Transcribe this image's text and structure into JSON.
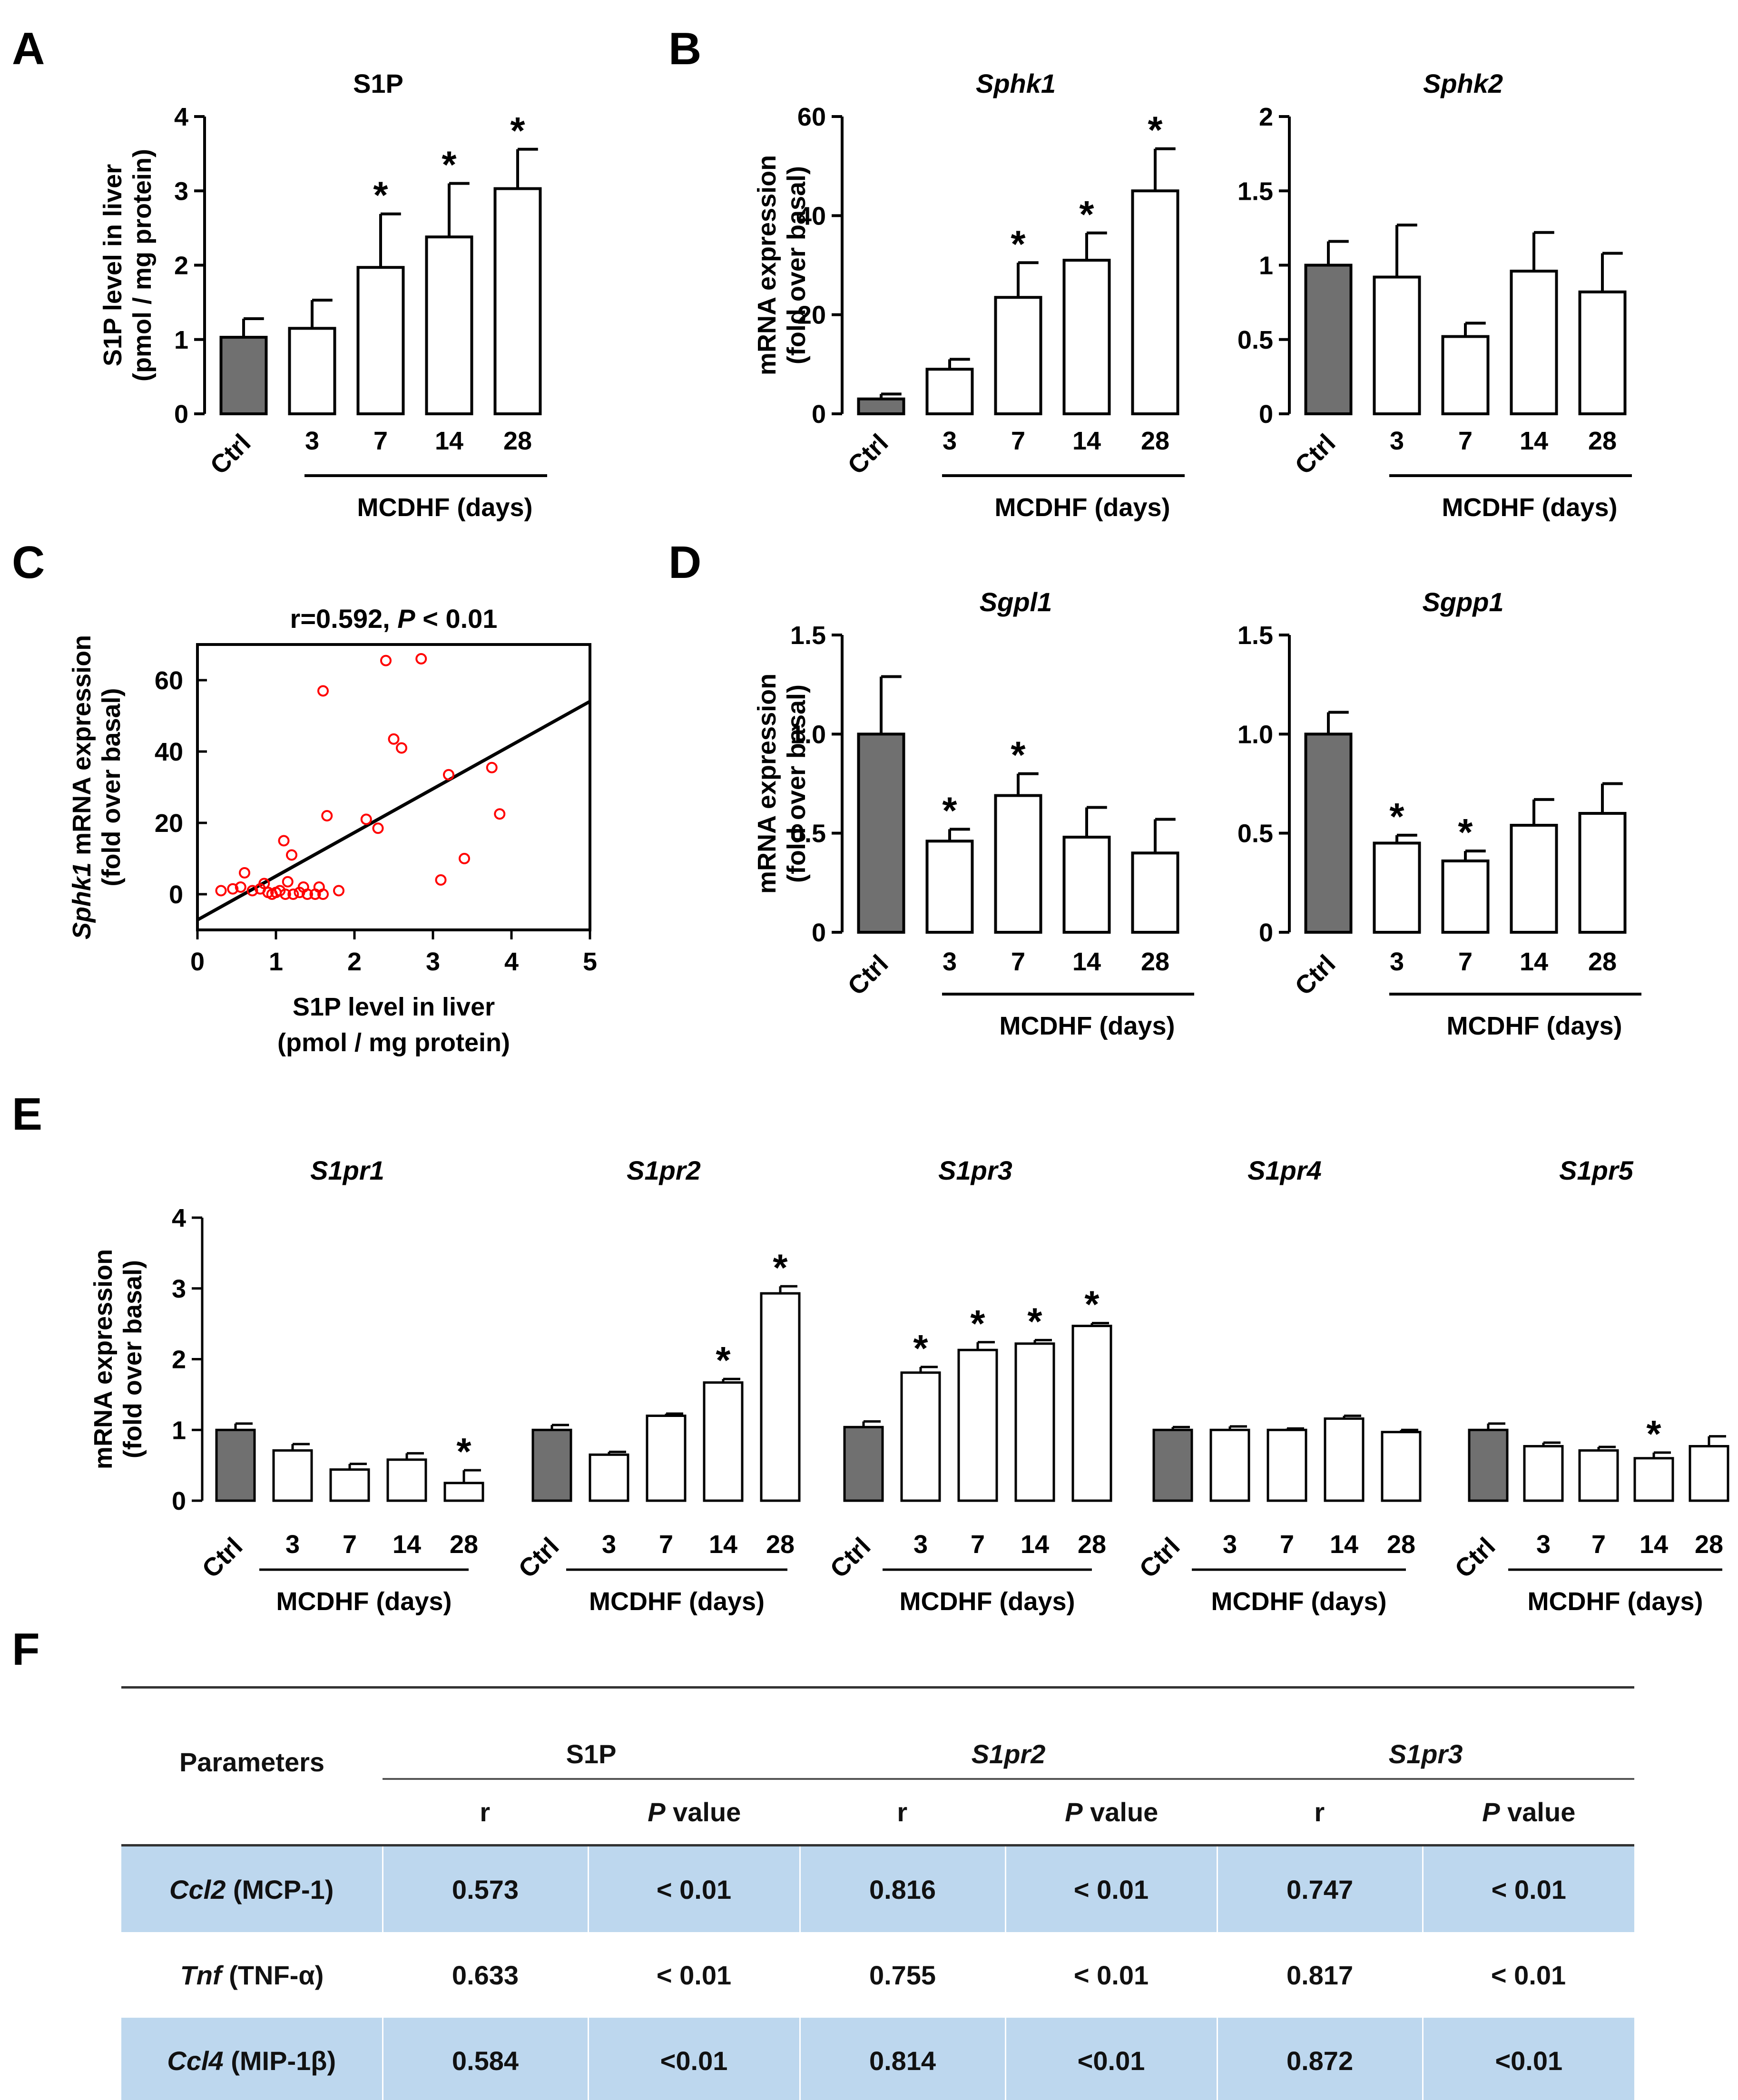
{
  "panel_labels": {
    "a": "A",
    "b": "B",
    "c": "C",
    "d": "D",
    "e": "E",
    "f": "F"
  },
  "group_axis_label": "MCDHF  (days)",
  "group_axis_label_e": "MCDHF (days)",
  "colors": {
    "ctrl_fill": "#707070",
    "bar_fill": "#ffffff",
    "scatter_point": "#ff0000",
    "table_shade": "#bdd7ee"
  },
  "chart_data": [
    {
      "id": "A",
      "type": "bar",
      "title": "S1P",
      "title_italic": false,
      "ylabel": [
        "S1P level in liver",
        "(pmol / mg protein)"
      ],
      "categories": [
        "Ctrl",
        "3",
        "7",
        "14",
        "28"
      ],
      "values": [
        1.03,
        1.15,
        1.97,
        2.38,
        3.03
      ],
      "errors": [
        0.25,
        0.38,
        0.72,
        0.72,
        0.53
      ],
      "significant": [
        false,
        false,
        true,
        true,
        true
      ],
      "ylim": [
        0,
        4
      ],
      "yticks": [
        "0",
        "1",
        "2",
        "3",
        "4"
      ],
      "ytick_values": [
        0,
        1,
        2,
        3,
        4
      ]
    },
    {
      "id": "B1",
      "type": "bar",
      "title": "Sphk1",
      "title_italic": true,
      "ylabel": [
        "mRNA expression",
        "(fold over basal)"
      ],
      "categories": [
        "Ctrl",
        "3",
        "7",
        "14",
        "28"
      ],
      "values": [
        3,
        9,
        23.5,
        31,
        45
      ],
      "errors": [
        1,
        2,
        7,
        5.5,
        8.5
      ],
      "significant": [
        false,
        false,
        true,
        true,
        true
      ],
      "ylim": [
        0,
        60
      ],
      "yticks": [
        "0",
        "20",
        "40",
        "60"
      ],
      "ytick_values": [
        0,
        20,
        40,
        60
      ]
    },
    {
      "id": "B2",
      "type": "bar",
      "title": "Sphk2",
      "title_italic": true,
      "ylabel": [],
      "categories": [
        "Ctrl",
        "3",
        "7",
        "14",
        "28"
      ],
      "values": [
        1.0,
        0.92,
        0.52,
        0.96,
        0.82
      ],
      "errors": [
        0.16,
        0.35,
        0.09,
        0.26,
        0.26
      ],
      "significant": [
        false,
        false,
        false,
        false,
        false
      ],
      "ylim": [
        0,
        2
      ],
      "yticks": [
        "0",
        "0.5",
        "1",
        "1.5",
        "2"
      ],
      "ytick_values": [
        0,
        0.5,
        1,
        1.5,
        2
      ]
    },
    {
      "id": "C",
      "type": "scatter",
      "title_prefix": "r=0.592, ",
      "title_p": "P",
      "title_suffix": " < 0.01",
      "ylabel_italic": "Sphk1",
      "ylabel_rest": " mRNA expression",
      "ylabel2": "(fold over basal)",
      "xlabel": [
        "S1P level in liver",
        "(pmol / mg protein)"
      ],
      "xlim": [
        0,
        5
      ],
      "ylim": [
        -10,
        70
      ],
      "xticks": [
        "0",
        "1",
        "2",
        "3",
        "4",
        "5"
      ],
      "xtick_values": [
        0,
        1,
        2,
        3,
        4,
        5
      ],
      "yticks": [
        "0",
        "20",
        "40",
        "60"
      ],
      "ytick_values": [
        0,
        20,
        40,
        60
      ],
      "points": [
        [
          0.3,
          1
        ],
        [
          0.45,
          1.5
        ],
        [
          0.55,
          2
        ],
        [
          0.6,
          6
        ],
        [
          0.7,
          1
        ],
        [
          0.8,
          1.5
        ],
        [
          0.85,
          3
        ],
        [
          0.9,
          0.5
        ],
        [
          0.95,
          0
        ],
        [
          1.0,
          0.5
        ],
        [
          1.05,
          1
        ],
        [
          1.1,
          15
        ],
        [
          1.12,
          0
        ],
        [
          1.15,
          3.5
        ],
        [
          1.2,
          11
        ],
        [
          1.22,
          0
        ],
        [
          1.3,
          0.5
        ],
        [
          1.35,
          2
        ],
        [
          1.4,
          0
        ],
        [
          1.5,
          0
        ],
        [
          1.55,
          2
        ],
        [
          1.6,
          57
        ],
        [
          1.6,
          0
        ],
        [
          1.65,
          22
        ],
        [
          1.8,
          1
        ],
        [
          2.15,
          21
        ],
        [
          2.3,
          18.5
        ],
        [
          2.4,
          65.5
        ],
        [
          2.5,
          43.5
        ],
        [
          2.6,
          41
        ],
        [
          2.85,
          66
        ],
        [
          3.1,
          4
        ],
        [
          3.2,
          33.5
        ],
        [
          3.4,
          10
        ],
        [
          3.75,
          35.5
        ],
        [
          3.85,
          22.5
        ]
      ],
      "regression": {
        "intercept": -7.2,
        "slope": 12.25
      }
    },
    {
      "id": "D1",
      "type": "bar",
      "title": "Sgpl1",
      "title_italic": true,
      "ylabel": [
        "mRNA expression",
        "(fold over basal)"
      ],
      "categories": [
        "Ctrl",
        "3",
        "7",
        "14",
        "28"
      ],
      "values": [
        1.0,
        0.46,
        0.69,
        0.48,
        0.4
      ],
      "errors": [
        0.29,
        0.06,
        0.11,
        0.15,
        0.17
      ],
      "significant": [
        false,
        true,
        true,
        false,
        false
      ],
      "ylim": [
        0,
        1.5
      ],
      "yticks": [
        "0",
        "0.5",
        "1.0",
        "1.5"
      ],
      "ytick_values": [
        0,
        0.5,
        1.0,
        1.5
      ]
    },
    {
      "id": "D2",
      "type": "bar",
      "title": "Sgpp1",
      "title_italic": true,
      "ylabel": [],
      "categories": [
        "Ctrl",
        "3",
        "7",
        "14",
        "28"
      ],
      "values": [
        1.0,
        0.45,
        0.36,
        0.54,
        0.6
      ],
      "errors": [
        0.11,
        0.04,
        0.05,
        0.13,
        0.15
      ],
      "significant": [
        false,
        true,
        true,
        false,
        false
      ],
      "ylim": [
        0,
        1.5
      ],
      "yticks": [
        "0",
        "0.5",
        "1.0",
        "1.5"
      ],
      "ytick_values": [
        0,
        0.5,
        1.0,
        1.5
      ]
    },
    {
      "id": "E1",
      "type": "bar",
      "title": "S1pr1",
      "title_italic": true,
      "ylabel": [
        "mRNA expression",
        "(fold over basal)"
      ],
      "categories": [
        "Ctrl",
        "3",
        "7",
        "14",
        "28"
      ],
      "values": [
        1.0,
        0.71,
        0.44,
        0.58,
        0.25
      ],
      "errors": [
        0.09,
        0.09,
        0.08,
        0.09,
        0.18
      ],
      "significant": [
        false,
        false,
        false,
        false,
        true
      ],
      "ylim": [
        0,
        4
      ],
      "yticks": [
        "0",
        "1",
        "2",
        "3",
        "4"
      ],
      "ytick_values": [
        0,
        1,
        2,
        3,
        4
      ]
    },
    {
      "id": "E2",
      "type": "bar",
      "title": "S1pr2",
      "title_italic": true,
      "ylabel": [],
      "categories": [
        "Ctrl",
        "3",
        "7",
        "14",
        "28"
      ],
      "values": [
        1.0,
        0.65,
        1.2,
        1.67,
        2.93
      ],
      "errors": [
        0.07,
        0.04,
        0.03,
        0.05,
        0.1
      ],
      "significant": [
        false,
        false,
        false,
        true,
        true
      ],
      "ylim": [
        0,
        4
      ],
      "yticks": [],
      "ytick_values": []
    },
    {
      "id": "E3",
      "type": "bar",
      "title": "S1pr3",
      "title_italic": true,
      "ylabel": [],
      "categories": [
        "Ctrl",
        "3",
        "7",
        "14",
        "28"
      ],
      "values": [
        1.04,
        1.81,
        2.13,
        2.22,
        2.47
      ],
      "errors": [
        0.08,
        0.08,
        0.11,
        0.05,
        0.04
      ],
      "significant": [
        false,
        true,
        true,
        true,
        true
      ],
      "ylim": [
        0,
        4
      ],
      "yticks": [],
      "ytick_values": []
    },
    {
      "id": "E4",
      "type": "bar",
      "title": "S1pr4",
      "title_italic": true,
      "ylabel": [],
      "categories": [
        "Ctrl",
        "3",
        "7",
        "14",
        "28"
      ],
      "values": [
        1.0,
        1.0,
        1.0,
        1.16,
        0.97
      ],
      "errors": [
        0.04,
        0.05,
        0.02,
        0.04,
        0.03
      ],
      "significant": [
        false,
        false,
        false,
        false,
        false
      ],
      "ylim": [
        0,
        4
      ],
      "yticks": [],
      "ytick_values": []
    },
    {
      "id": "E5",
      "type": "bar",
      "title": "S1pr5",
      "title_italic": true,
      "ylabel": [],
      "categories": [
        "Ctrl",
        "3",
        "7",
        "14",
        "28"
      ],
      "values": [
        1.0,
        0.77,
        0.71,
        0.6,
        0.77
      ],
      "errors": [
        0.09,
        0.05,
        0.05,
        0.08,
        0.14
      ],
      "significant": [
        false,
        false,
        false,
        true,
        false
      ],
      "ylim": [
        0,
        4
      ],
      "yticks": [],
      "ytick_values": []
    }
  ],
  "table": {
    "parameters_header": "Parameters",
    "groups": [
      {
        "label": "S1P",
        "italic": false
      },
      {
        "label": "S1pr2",
        "italic": true
      },
      {
        "label": "S1pr3",
        "italic": true
      }
    ],
    "r_header": "r",
    "p_header_italic": "P",
    "p_header_rest": " value",
    "rows": [
      {
        "gene": "Ccl2",
        "protein": " (MCP-1)",
        "shaded": true,
        "values": [
          "0.573",
          "< 0.01",
          "0.816",
          "< 0.01",
          "0.747",
          "< 0.01"
        ]
      },
      {
        "gene": "Tnf",
        "protein": " (TNF-α)",
        "shaded": false,
        "values": [
          "0.633",
          "< 0.01",
          "0.755",
          "< 0.01",
          "0.817",
          "< 0.01"
        ]
      },
      {
        "gene": "Ccl4",
        "protein": " (MIP-1β)",
        "shaded": true,
        "values": [
          "0.584",
          "<0.01",
          "0.814",
          "<0.01",
          "0.872",
          "<0.01"
        ]
      }
    ]
  }
}
